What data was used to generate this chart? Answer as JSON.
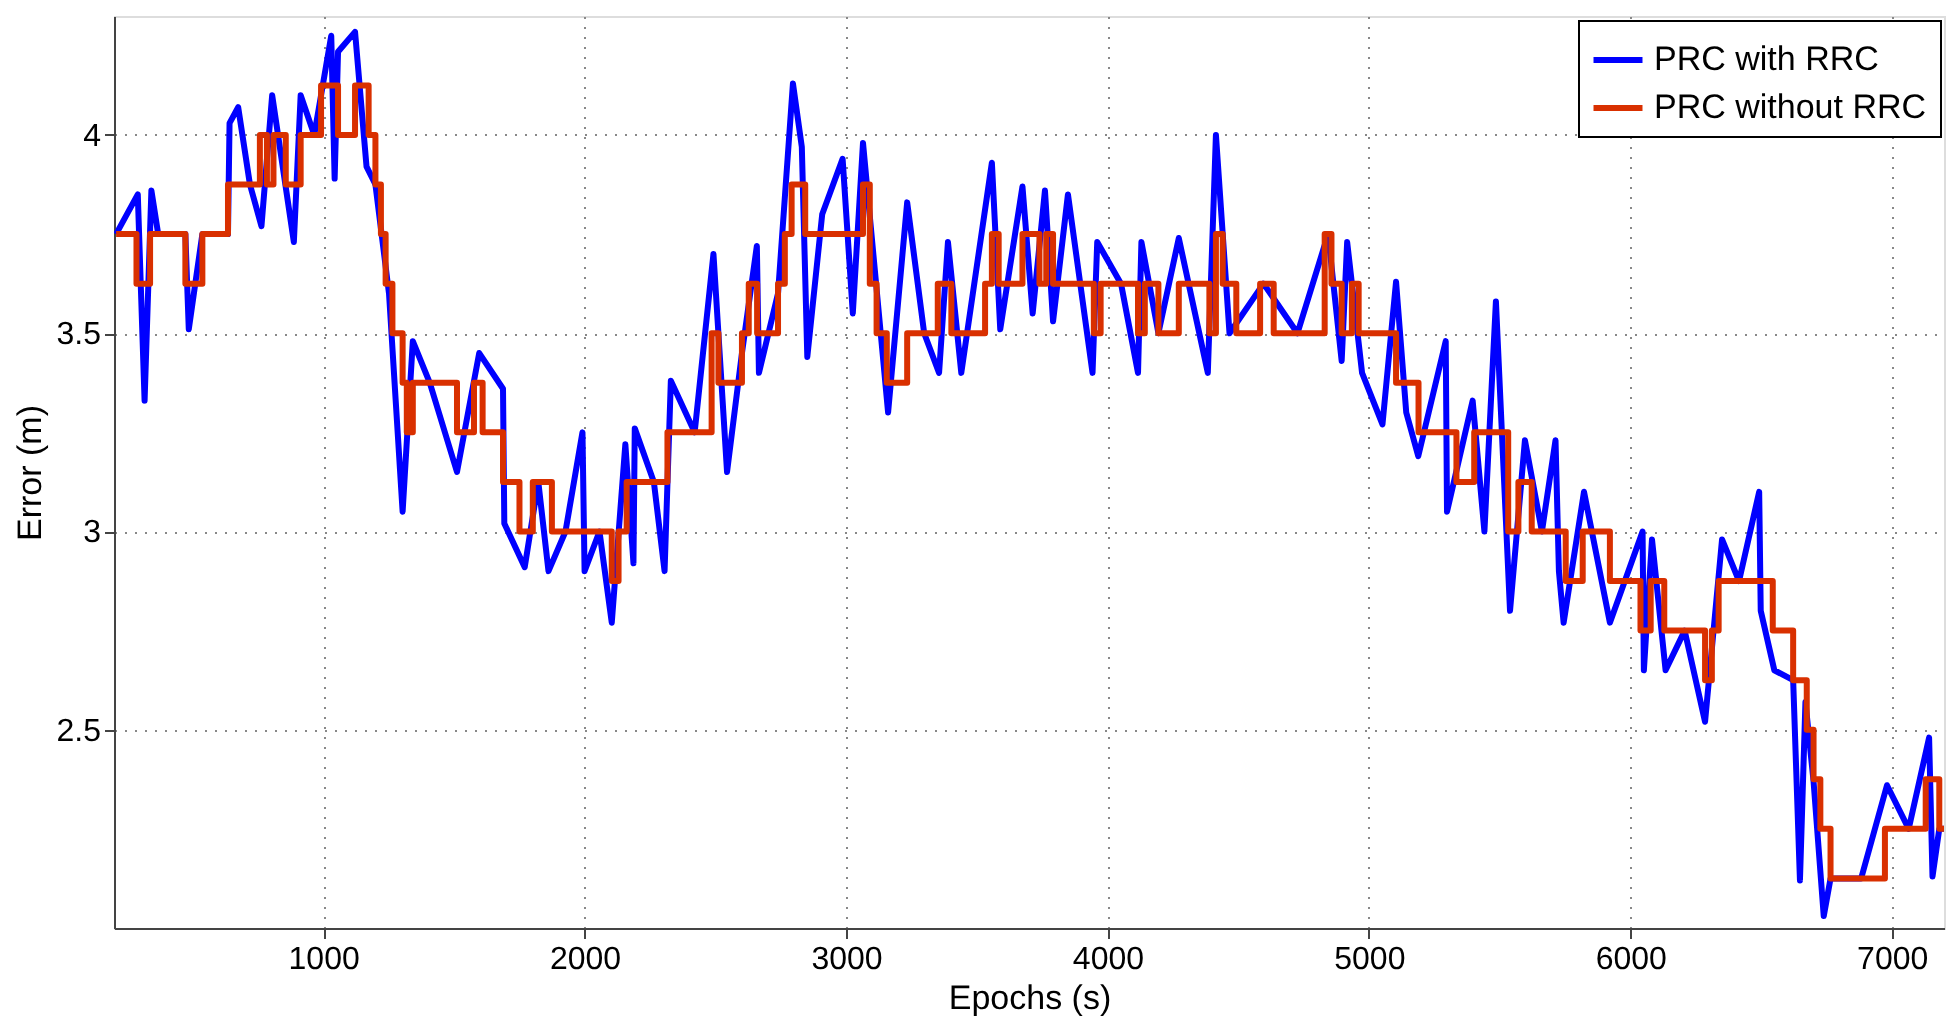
{
  "chart_data": {
    "type": "line",
    "xlabel": "Epochs (s)",
    "ylabel": "Error (m)",
    "xlim": [
      200,
      7200
    ],
    "xticks": [
      1000,
      2000,
      3000,
      4000,
      5000,
      6000,
      7000
    ],
    "ylim": [
      2,
      4.3
    ],
    "yticks": [
      2.5,
      3,
      3.5,
      4
    ],
    "grid": true,
    "legend": "top right",
    "series": [
      {
        "name": "PRC with RRC",
        "color": "#0000ff",
        "type": "line",
        "x": [
          208,
          291,
          317,
          343,
          369,
          473,
          486,
          538,
          636,
          642,
          675,
          720,
          764,
          805,
          888,
          914,
          966,
          1031,
          1044,
          1057,
          1122,
          1166,
          1200,
          1252,
          1304,
          1343,
          1408,
          1512,
          1597,
          1688,
          1693,
          1771,
          1823,
          1862,
          1927,
          1992,
          2000,
          2057,
          2104,
          2156,
          2187,
          2192,
          2265,
          2306,
          2330,
          2421,
          2493,
          2545,
          2602,
          2659,
          2667,
          2740,
          2797,
          2831,
          2852,
          2909,
          2987,
          3026,
          3065,
          3161,
          3234,
          3299,
          3356,
          3390,
          3441,
          3558,
          3590,
          3675,
          3714,
          3761,
          3792,
          3849,
          3943,
          3961,
          4052,
          4117,
          4130,
          4195,
          4273,
          4384,
          4415,
          4467,
          4597,
          4727,
          4844,
          4896,
          4917,
          4974,
          5052,
          5104,
          5143,
          5189,
          5294,
          5299,
          5397,
          5442,
          5486,
          5540,
          5597,
          5662,
          5714,
          5727,
          5745,
          5823,
          5922,
          6047,
          6052,
          6083,
          6135,
          6208,
          6286,
          6351,
          6416,
          6493,
          6499,
          6551,
          6623,
          6649,
          6670,
          6701,
          6740,
          6766,
          6883,
          6982,
          7065,
          7143,
          7156,
          7182,
          7200
        ],
        "values": [
          3.75,
          3.85,
          3.33,
          3.86,
          3.75,
          3.75,
          3.51,
          3.75,
          3.75,
          4.03,
          4.07,
          3.875,
          3.77,
          4.1,
          3.73,
          4.1,
          4.0,
          4.25,
          3.89,
          4.21,
          4.26,
          3.92,
          3.875,
          3.6,
          3.05,
          3.48,
          3.375,
          3.15,
          3.45,
          3.36,
          3.02,
          2.91,
          3.125,
          2.9,
          3.0,
          3.25,
          2.9,
          3.0,
          2.77,
          3.22,
          2.92,
          3.26,
          3.125,
          2.9,
          3.38,
          3.25,
          3.7,
          3.15,
          3.45,
          3.72,
          3.4,
          3.6,
          4.13,
          3.97,
          3.44,
          3.8,
          3.94,
          3.55,
          3.98,
          3.3,
          3.83,
          3.5,
          3.4,
          3.73,
          3.4,
          3.93,
          3.51,
          3.87,
          3.55,
          3.86,
          3.53,
          3.85,
          3.4,
          3.73,
          3.625,
          3.4,
          3.73,
          3.5,
          3.74,
          3.4,
          4.0,
          3.5,
          3.625,
          3.5,
          3.75,
          3.43,
          3.73,
          3.4,
          3.27,
          3.63,
          3.3,
          3.19,
          3.48,
          3.05,
          3.33,
          3.0,
          3.58,
          2.8,
          3.23,
          3.0,
          3.23,
          2.9,
          2.77,
          3.1,
          2.77,
          3.0,
          2.65,
          2.98,
          2.65,
          2.75,
          2.52,
          2.98,
          2.875,
          3.1,
          2.8,
          2.65,
          2.625,
          2.12,
          2.57,
          2.37,
          2.03,
          2.125,
          2.125,
          2.36,
          2.25,
          2.48,
          2.13,
          2.25,
          2.25
        ]
      },
      {
        "name": "PRC without RRC",
        "color": "#d93000",
        "type": "step",
        "x": [
          208,
          286,
          338,
          473,
          538,
          636,
          758,
          785,
          810,
          857,
          914,
          992,
          1057,
          1122,
          1174,
          1200,
          1221,
          1239,
          1265,
          1304,
          1320,
          1343,
          1512,
          1577,
          1610,
          1688,
          1751,
          1802,
          1875,
          2104,
          2130,
          2161,
          2317,
          2486,
          2512,
          2602,
          2628,
          2660,
          2740,
          2766,
          2792,
          2844,
          3065,
          3091,
          3117,
          3156,
          3234,
          3351,
          3403,
          3532,
          3558,
          3584,
          3675,
          3740,
          3766,
          3792,
          3948,
          3974,
          4117,
          4143,
          4195,
          4273,
          4390,
          4415,
          4441,
          4493,
          4584,
          4636,
          4831,
          4857,
          4896,
          4935,
          4961,
          5104,
          5190,
          5335,
          5403,
          5533,
          5572,
          5623,
          5753,
          5818,
          5922,
          6039,
          6078,
          6130,
          6286,
          6312,
          6338,
          6545,
          6623,
          6675,
          6701,
          6727,
          6766,
          6974,
          7130,
          7182,
          7200
        ],
        "values": [
          3.75,
          3.625,
          3.75,
          3.625,
          3.75,
          3.875,
          4.0,
          3.875,
          4.0,
          3.875,
          4.0,
          4.125,
          4.0,
          4.125,
          4.0,
          3.875,
          3.75,
          3.625,
          3.5,
          3.375,
          3.25,
          3.375,
          3.25,
          3.375,
          3.25,
          3.125,
          3.0,
          3.125,
          3.0,
          2.875,
          3.0,
          3.125,
          3.25,
          3.5,
          3.375,
          3.5,
          3.625,
          3.5,
          3.625,
          3.75,
          3.875,
          3.75,
          3.875,
          3.625,
          3.5,
          3.375,
          3.5,
          3.625,
          3.5,
          3.625,
          3.75,
          3.625,
          3.75,
          3.625,
          3.75,
          3.625,
          3.5,
          3.625,
          3.5,
          3.625,
          3.5,
          3.625,
          3.5,
          3.75,
          3.625,
          3.5,
          3.625,
          3.5,
          3.75,
          3.625,
          3.5,
          3.625,
          3.5,
          3.375,
          3.25,
          3.125,
          3.25,
          3.0,
          3.125,
          3.0,
          2.875,
          3.0,
          2.875,
          2.75,
          2.875,
          2.75,
          2.625,
          2.75,
          2.875,
          2.75,
          2.625,
          2.5,
          2.375,
          2.25,
          2.125,
          2.25,
          2.375,
          2.25,
          2.25
        ]
      }
    ]
  }
}
